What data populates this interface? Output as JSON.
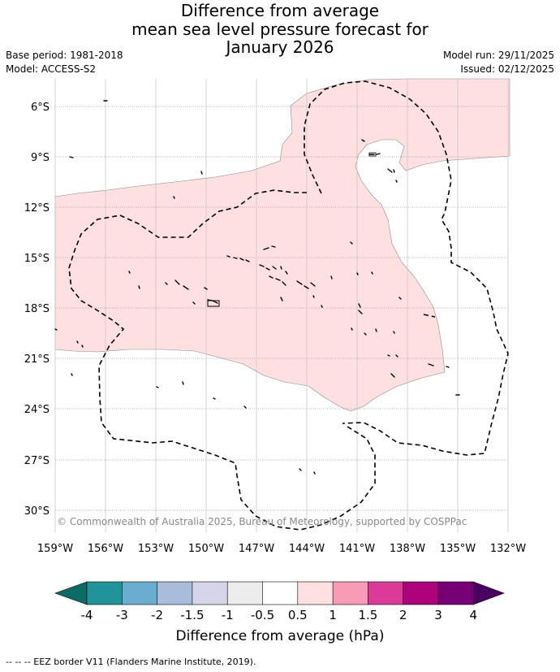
{
  "title": {
    "line1": "Difference from average",
    "line2": "mean sea level pressure forecast for",
    "line3": "January 2026"
  },
  "info": {
    "base_period": "Base period: 1981-2018",
    "model": "Model: ACCESS-S2",
    "model_run": "Model run: 29/11/2025",
    "issued": "Issued: 02/12/2025"
  },
  "map": {
    "lat_labels": [
      "6°S",
      "9°S",
      "12°S",
      "15°S",
      "18°S",
      "21°S",
      "24°S",
      "27°S",
      "30°S"
    ],
    "lon_labels": [
      "159°W",
      "156°W",
      "153°W",
      "150°W",
      "147°W",
      "144°W",
      "141°W",
      "138°W",
      "135°W",
      "132°W"
    ],
    "copyright": "© Commonwealth of Australia 2025, Bureau of Meteorology, supported by COSPPac",
    "anomaly_fill_color": "#fde0df",
    "anomaly_fill_meaning": "0.5 to 1 hPa above average"
  },
  "colorbar": {
    "ticks": [
      "-4",
      "-3",
      "-2",
      "-1.5",
      "-1",
      "-0.5",
      "0.5",
      "1",
      "1.5",
      "2",
      "3",
      "4"
    ],
    "colors": [
      "#0a6b67",
      "#1f9499",
      "#6aadd0",
      "#a8bcdc",
      "#d5d4e8",
      "#ececec",
      "#ffffff",
      "#fde0df",
      "#f99bb6",
      "#dc3a98",
      "#ae027d",
      "#780077",
      "#4a0060"
    ],
    "label": "Difference from average (hPa)"
  },
  "footer": {
    "legend": "--  --  -- EEZ border V11 (Flanders Marine Institute, 2019)."
  }
}
